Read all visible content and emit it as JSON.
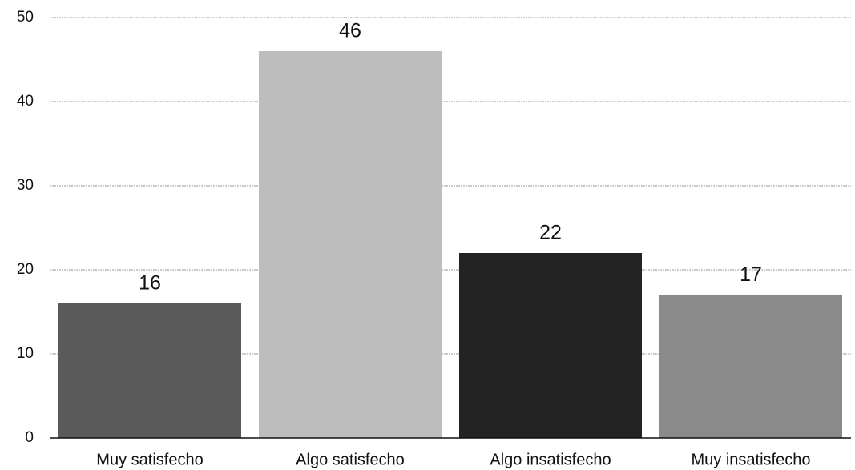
{
  "chart_data": {
    "type": "bar",
    "categories": [
      "Muy satisfecho",
      "Algo satisfecho",
      "Algo insatisfecho",
      "Muy insatisfecho"
    ],
    "values": [
      16,
      46,
      22,
      17
    ],
    "colors": [
      "#5a5a5a",
      "#bdbdbd",
      "#232323",
      "#8a8a8a"
    ],
    "ylim": [
      0,
      50
    ],
    "yticks": [
      0,
      10,
      20,
      30,
      40,
      50
    ],
    "grid": true
  }
}
